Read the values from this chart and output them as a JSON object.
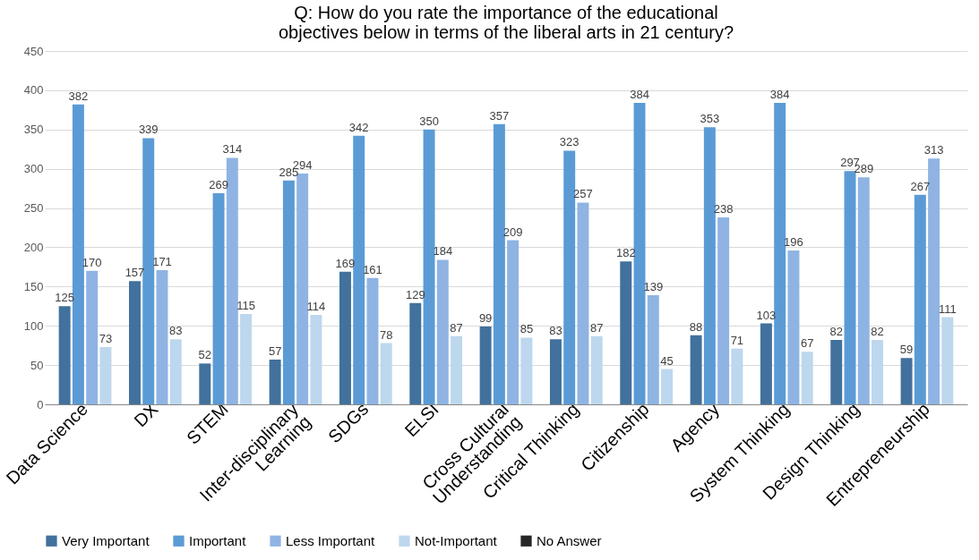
{
  "chart_data": {
    "type": "bar",
    "title": "Q: How do you rate the importance of the educational\nobjectives below in terms of the liberal arts in 21 century?",
    "categories": [
      "Data Science",
      "DX",
      "STEM",
      "Inter-disciplinary\nLearning",
      "SDGs",
      "ELSI",
      "Cross Cultural\nUnderstanding",
      "Critical Thinking",
      "Citizenship",
      "Agency",
      "System Thinking",
      "Design Thinking",
      "Entrepreneurship"
    ],
    "series": [
      {
        "name": "Very Important",
        "color": "#41719c",
        "values": [
          125,
          157,
          52,
          57,
          169,
          129,
          99,
          83,
          182,
          88,
          103,
          82,
          59
        ]
      },
      {
        "name": "Important",
        "color": "#5b9bd5",
        "values": [
          382,
          339,
          269,
          285,
          342,
          350,
          357,
          323,
          384,
          353,
          384,
          297,
          267
        ]
      },
      {
        "name": "Less Important",
        "color": "#8fb4e3",
        "values": [
          170,
          171,
          314,
          294,
          161,
          184,
          209,
          257,
          139,
          238,
          196,
          289,
          313
        ]
      },
      {
        "name": "Not-Important",
        "color": "#bdd7ee",
        "values": [
          73,
          83,
          115,
          114,
          78,
          87,
          85,
          87,
          45,
          71,
          67,
          82,
          111
        ]
      },
      {
        "name": "No Answer",
        "color": "#262626",
        "values": [
          null,
          null,
          null,
          null,
          null,
          null,
          null,
          null,
          null,
          null,
          null,
          null,
          null
        ]
      }
    ],
    "ylim": [
      0,
      450
    ],
    "yticks": [
      0,
      50,
      100,
      150,
      200,
      250,
      300,
      350,
      400,
      450
    ],
    "grid": "y",
    "legend": "bottom",
    "data_labels": true
  }
}
